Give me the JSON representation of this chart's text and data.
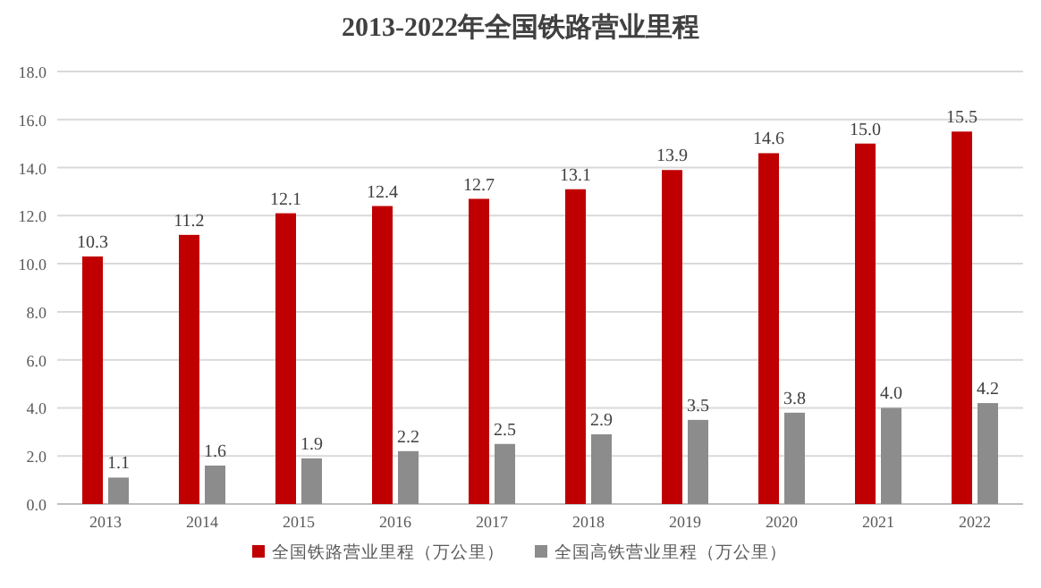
{
  "chart_data": {
    "type": "bar",
    "title": "2013-2022年全国铁路营业里程",
    "categories": [
      "2013",
      "2014",
      "2015",
      "2016",
      "2017",
      "2018",
      "2019",
      "2020",
      "2021",
      "2022"
    ],
    "series": [
      {
        "name": "全国铁路营业里程（万公里）",
        "color": "#c00000",
        "values": [
          10.3,
          11.2,
          12.1,
          12.4,
          12.7,
          13.1,
          13.9,
          14.6,
          15.0,
          15.5
        ],
        "value_labels": [
          "10.3",
          "11.2",
          "12.1",
          "12.4",
          "12.7",
          "13.1",
          "13.9",
          "14.6",
          "15.0",
          "15.5"
        ]
      },
      {
        "name": "全国高铁营业里程（万公里）",
        "color": "#8c8c8c",
        "values": [
          1.1,
          1.6,
          1.9,
          2.2,
          2.5,
          2.9,
          3.5,
          3.8,
          4.0,
          4.2
        ],
        "value_labels": [
          "1.1",
          "1.6",
          "1.9",
          "2.2",
          "2.5",
          "2.9",
          "3.5",
          "3.8",
          "4.0",
          "4.2"
        ]
      }
    ],
    "ylim": [
      0,
      18
    ],
    "yticks": [
      {
        "value": 0,
        "label": "0.0"
      },
      {
        "value": 2,
        "label": "2.0"
      },
      {
        "value": 4,
        "label": "4.0"
      },
      {
        "value": 6,
        "label": "6.0"
      },
      {
        "value": 8,
        "label": "8.0"
      },
      {
        "value": 10,
        "label": "10.0"
      },
      {
        "value": 12,
        "label": "12.0"
      },
      {
        "value": 14,
        "label": "14.0"
      },
      {
        "value": 16,
        "label": "16.0"
      },
      {
        "value": 18,
        "label": "18.0"
      }
    ],
    "grid": "y",
    "legend": "bottom"
  }
}
